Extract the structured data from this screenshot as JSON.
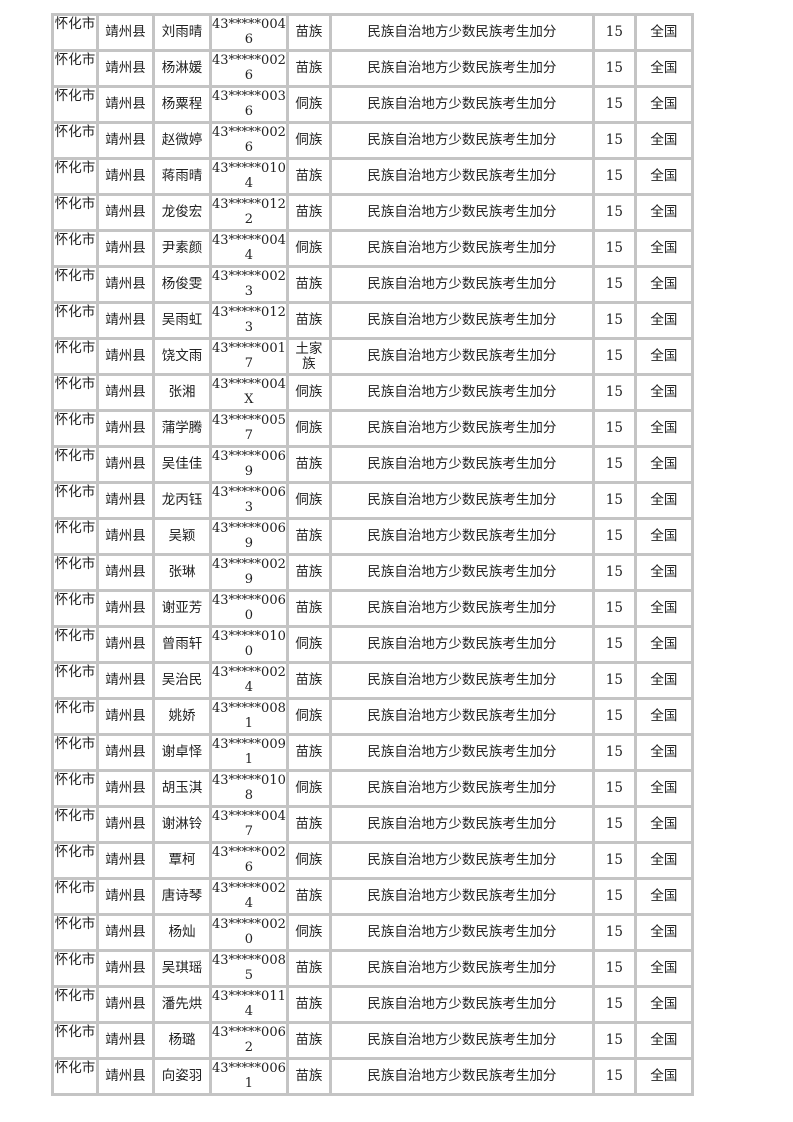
{
  "table": {
    "rows": [
      {
        "city": "怀化市",
        "county": "靖州县",
        "name": "刘雨晴",
        "id": "43*****0046",
        "ethnicity": "苗族",
        "reason": "民族自治地方少数民族考生加分",
        "points": "15",
        "scope": "全国"
      },
      {
        "city": "怀化市",
        "county": "靖州县",
        "name": "杨淋媛",
        "id": "43*****0026",
        "ethnicity": "苗族",
        "reason": "民族自治地方少数民族考生加分",
        "points": "15",
        "scope": "全国"
      },
      {
        "city": "怀化市",
        "county": "靖州县",
        "name": "杨粟程",
        "id": "43*****0036",
        "ethnicity": "侗族",
        "reason": "民族自治地方少数民族考生加分",
        "points": "15",
        "scope": "全国"
      },
      {
        "city": "怀化市",
        "county": "靖州县",
        "name": "赵微婷",
        "id": "43*****0026",
        "ethnicity": "侗族",
        "reason": "民族自治地方少数民族考生加分",
        "points": "15",
        "scope": "全国"
      },
      {
        "city": "怀化市",
        "county": "靖州县",
        "name": "蒋雨晴",
        "id": "43*****0104",
        "ethnicity": "苗族",
        "reason": "民族自治地方少数民族考生加分",
        "points": "15",
        "scope": "全国"
      },
      {
        "city": "怀化市",
        "county": "靖州县",
        "name": "龙俊宏",
        "id": "43*****0122",
        "ethnicity": "苗族",
        "reason": "民族自治地方少数民族考生加分",
        "points": "15",
        "scope": "全国"
      },
      {
        "city": "怀化市",
        "county": "靖州县",
        "name": "尹素颜",
        "id": "43*****0044",
        "ethnicity": "侗族",
        "reason": "民族自治地方少数民族考生加分",
        "points": "15",
        "scope": "全国"
      },
      {
        "city": "怀化市",
        "county": "靖州县",
        "name": "杨俊雯",
        "id": "43*****0023",
        "ethnicity": "苗族",
        "reason": "民族自治地方少数民族考生加分",
        "points": "15",
        "scope": "全国"
      },
      {
        "city": "怀化市",
        "county": "靖州县",
        "name": "吴雨虹",
        "id": "43*****0123",
        "ethnicity": "苗族",
        "reason": "民族自治地方少数民族考生加分",
        "points": "15",
        "scope": "全国"
      },
      {
        "city": "怀化市",
        "county": "靖州县",
        "name": "饶文雨",
        "id": "43*****0017",
        "ethnicity": "土家族",
        "reason": "民族自治地方少数民族考生加分",
        "points": "15",
        "scope": "全国"
      },
      {
        "city": "怀化市",
        "county": "靖州县",
        "name": "张湘",
        "id": "43*****004X",
        "ethnicity": "侗族",
        "reason": "民族自治地方少数民族考生加分",
        "points": "15",
        "scope": "全国"
      },
      {
        "city": "怀化市",
        "county": "靖州县",
        "name": "蒲学腾",
        "id": "43*****0057",
        "ethnicity": "侗族",
        "reason": "民族自治地方少数民族考生加分",
        "points": "15",
        "scope": "全国"
      },
      {
        "city": "怀化市",
        "county": "靖州县",
        "name": "吴佳佳",
        "id": "43*****0069",
        "ethnicity": "苗族",
        "reason": "民族自治地方少数民族考生加分",
        "points": "15",
        "scope": "全国"
      },
      {
        "city": "怀化市",
        "county": "靖州县",
        "name": "龙丙钰",
        "id": "43*****0063",
        "ethnicity": "侗族",
        "reason": "民族自治地方少数民族考生加分",
        "points": "15",
        "scope": "全国"
      },
      {
        "city": "怀化市",
        "county": "靖州县",
        "name": "吴颖",
        "id": "43*****0069",
        "ethnicity": "苗族",
        "reason": "民族自治地方少数民族考生加分",
        "points": "15",
        "scope": "全国"
      },
      {
        "city": "怀化市",
        "county": "靖州县",
        "name": "张琳",
        "id": "43*****0029",
        "ethnicity": "苗族",
        "reason": "民族自治地方少数民族考生加分",
        "points": "15",
        "scope": "全国"
      },
      {
        "city": "怀化市",
        "county": "靖州县",
        "name": "谢亚芳",
        "id": "43*****0060",
        "ethnicity": "苗族",
        "reason": "民族自治地方少数民族考生加分",
        "points": "15",
        "scope": "全国"
      },
      {
        "city": "怀化市",
        "county": "靖州县",
        "name": "曾雨轩",
        "id": "43*****0100",
        "ethnicity": "侗族",
        "reason": "民族自治地方少数民族考生加分",
        "points": "15",
        "scope": "全国"
      },
      {
        "city": "怀化市",
        "county": "靖州县",
        "name": "吴治民",
        "id": "43*****0024",
        "ethnicity": "苗族",
        "reason": "民族自治地方少数民族考生加分",
        "points": "15",
        "scope": "全国"
      },
      {
        "city": "怀化市",
        "county": "靖州县",
        "name": "姚娇",
        "id": "43*****0081",
        "ethnicity": "侗族",
        "reason": "民族自治地方少数民族考生加分",
        "points": "15",
        "scope": "全国"
      },
      {
        "city": "怀化市",
        "county": "靖州县",
        "name": "谢卓怿",
        "id": "43*****0091",
        "ethnicity": "苗族",
        "reason": "民族自治地方少数民族考生加分",
        "points": "15",
        "scope": "全国"
      },
      {
        "city": "怀化市",
        "county": "靖州县",
        "name": "胡玉淇",
        "id": "43*****0108",
        "ethnicity": "侗族",
        "reason": "民族自治地方少数民族考生加分",
        "points": "15",
        "scope": "全国"
      },
      {
        "city": "怀化市",
        "county": "靖州县",
        "name": "谢淋铃",
        "id": "43*****0047",
        "ethnicity": "苗族",
        "reason": "民族自治地方少数民族考生加分",
        "points": "15",
        "scope": "全国"
      },
      {
        "city": "怀化市",
        "county": "靖州县",
        "name": "覃柯",
        "id": "43*****0026",
        "ethnicity": "侗族",
        "reason": "民族自治地方少数民族考生加分",
        "points": "15",
        "scope": "全国"
      },
      {
        "city": "怀化市",
        "county": "靖州县",
        "name": "唐诗琴",
        "id": "43*****0024",
        "ethnicity": "苗族",
        "reason": "民族自治地方少数民族考生加分",
        "points": "15",
        "scope": "全国"
      },
      {
        "city": "怀化市",
        "county": "靖州县",
        "name": "杨灿",
        "id": "43*****0020",
        "ethnicity": "侗族",
        "reason": "民族自治地方少数民族考生加分",
        "points": "15",
        "scope": "全国"
      },
      {
        "city": "怀化市",
        "county": "靖州县",
        "name": "吴琪瑶",
        "id": "43*****0085",
        "ethnicity": "苗族",
        "reason": "民族自治地方少数民族考生加分",
        "points": "15",
        "scope": "全国"
      },
      {
        "city": "怀化市",
        "county": "靖州县",
        "name": "潘先烘",
        "id": "43*****0114",
        "ethnicity": "苗族",
        "reason": "民族自治地方少数民族考生加分",
        "points": "15",
        "scope": "全国"
      },
      {
        "city": "怀化市",
        "county": "靖州县",
        "name": "杨璐",
        "id": "43*****0062",
        "ethnicity": "苗族",
        "reason": "民族自治地方少数民族考生加分",
        "points": "15",
        "scope": "全国"
      },
      {
        "city": "怀化市",
        "county": "靖州县",
        "name": "向姿羽",
        "id": "43*****0061",
        "ethnicity": "苗族",
        "reason": "民族自治地方少数民族考生加分",
        "points": "15",
        "scope": "全国"
      }
    ]
  }
}
